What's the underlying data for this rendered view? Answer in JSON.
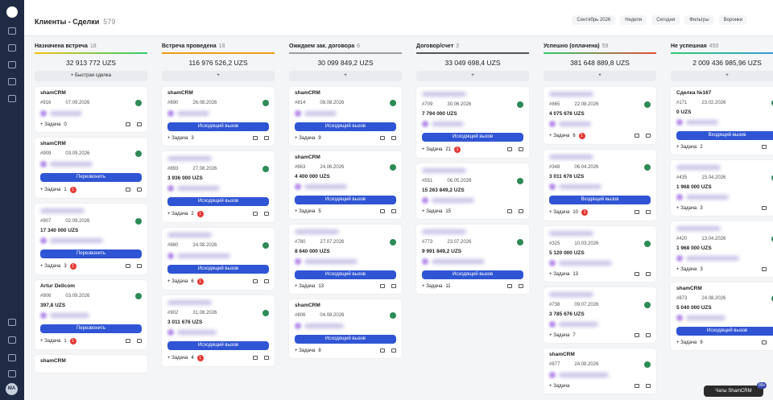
{
  "header": {
    "title": "Клиенты - Сделки",
    "count": 579,
    "toolbar": [
      "Сентябрь 2026",
      "Неделя",
      "Сегодня",
      "Фильтры",
      "Воронки"
    ]
  },
  "task_label": "Задача",
  "avatar": "MA",
  "chat": {
    "label": "Чаты ShamCRM",
    "badge": "99+"
  },
  "columns": [
    {
      "name": "Назначена встреча",
      "count": 18,
      "total": "32 913 772 UZS",
      "color": "linear-gradient(90deg,#f1c40f,#2ecc71)",
      "add_label": "Быстрая сделка",
      "cards": [
        {
          "title": "shamCRM",
          "id": "#916",
          "date": "07.09.2026",
          "task": 0
        },
        {
          "title": "shamCRM",
          "id": "#909",
          "date": "03.09.2026",
          "button": "Перезвонить",
          "task": 1,
          "alert": 1
        },
        {
          "id": "#907",
          "date": "02.09.2026",
          "amount": "17 340 000 UZS",
          "button": "Перезвонить",
          "task": 3,
          "alert": 1
        },
        {
          "title": "Artur Dellcom",
          "id": "#906",
          "date": "03.09.2026",
          "amount": "397,8 UZS",
          "button": "Перезвонить",
          "task": 1,
          "alert": 1
        },
        {
          "title": "shamCRM"
        }
      ]
    },
    {
      "name": "Встреча проведена",
      "count": 18,
      "total": "116 976 526,2 UZS",
      "color": "#f39c12",
      "cards": [
        {
          "title": "shamCRM",
          "id": "#890",
          "date": "26.08.2026",
          "button": "Исходящий вызов",
          "task": 3
        },
        {
          "id": "#893",
          "date": "27.08.2026",
          "amount": "3 936 000 UZS",
          "button": "Исходящий вызов",
          "task": 2,
          "alert": 1
        },
        {
          "id": "#880",
          "date": "24.08.2026",
          "button": "Исходящий вызов",
          "task": 6,
          "alert": 1
        },
        {
          "id": "#902",
          "date": "31.08.2026",
          "amount": "3 011 676 UZS",
          "button": "Исходящий вызов",
          "task": 4,
          "alert": 1
        }
      ]
    },
    {
      "name": "Ожидаем зак. договора",
      "count": 6,
      "total": "30 099 849,2 UZS",
      "color": "#9aa0a6",
      "cards": [
        {
          "title": "shamCRM",
          "id": "#814",
          "date": "08.08.2026",
          "button": "Исходящий вызов",
          "task": 9
        },
        {
          "title": "shamCRM",
          "id": "#663",
          "date": "24.06.2026",
          "amount": "4 400 000 UZS",
          "button": "Исходящий вызов",
          "task": 5
        },
        {
          "id": "#780",
          "date": "27.07.2026",
          "amount": "8 640 000 UZS",
          "button": "Исходящий вызов",
          "task": 13
        },
        {
          "title": "shamCRM",
          "id": "#806",
          "date": "04.08.2026",
          "button": "Исходящий вызов",
          "task": 8
        }
      ]
    },
    {
      "name": "Договор/счет",
      "count": 3,
      "total": "33 049 698,4 UZS",
      "color": "#555",
      "cards": [
        {
          "id": "#709",
          "date": "30.06.2026",
          "amount": "7 794 000 UZS",
          "button": "Исходящий вызов",
          "task": 21,
          "alert": 1
        },
        {
          "id": "#551",
          "date": "06.05.2026",
          "amount": "15 263 849,2 UZS",
          "task": 15
        },
        {
          "id": "#773",
          "date": "23.07.2026",
          "amount": "9 991 849,2 UZS",
          "button": "Исходящий вызов",
          "task": 11
        }
      ]
    },
    {
      "name": "Успешно (оплачена)",
      "count": 59,
      "total": "381 648 889,8 UZS",
      "color": "linear-gradient(90deg,#2ecc71,#e74c3c)",
      "cards": [
        {
          "id": "#865",
          "date": "22.08.2026",
          "amount": "4 075 676 UZS",
          "task": 6,
          "alert": 1
        },
        {
          "id": "#348",
          "date": "06.04.2026",
          "amount": "3 011 676 UZS",
          "button": "Входящий вызов",
          "task": 10,
          "alert": 1
        },
        {
          "id": "#325",
          "date": "10.03.2026",
          "amount": "5 120 000 UZS",
          "task": 13
        },
        {
          "id": "#738",
          "date": "09.07.2026",
          "amount": "3 785 676 UZS",
          "task": 7
        },
        {
          "title": "shamCRM",
          "id": "#877",
          "date": "24.08.2026"
        }
      ]
    },
    {
      "name": "Не успешная",
      "count": 450,
      "total": "2 009 436 985,96 UZS",
      "color": "linear-gradient(90deg,#2ecc71,#3498db)",
      "cards": [
        {
          "title": "Сделка №167",
          "id": "#171",
          "date": "23.02.2026",
          "amount": "0 UZS",
          "button": "Входящий вызов",
          "task": 2
        },
        {
          "id": "#435",
          "date": "15.04.2026",
          "amount": "1 968 000 UZS",
          "task": 3
        },
        {
          "id": "#420",
          "date": "13.04.2026",
          "amount": "1 968 000 UZS",
          "task": 3
        },
        {
          "title": "shamCRM",
          "id": "#873",
          "date": "24.08.2026",
          "amount": "5 040 000 UZS",
          "button": "Исходящий вызов",
          "task": 9
        }
      ]
    }
  ]
}
